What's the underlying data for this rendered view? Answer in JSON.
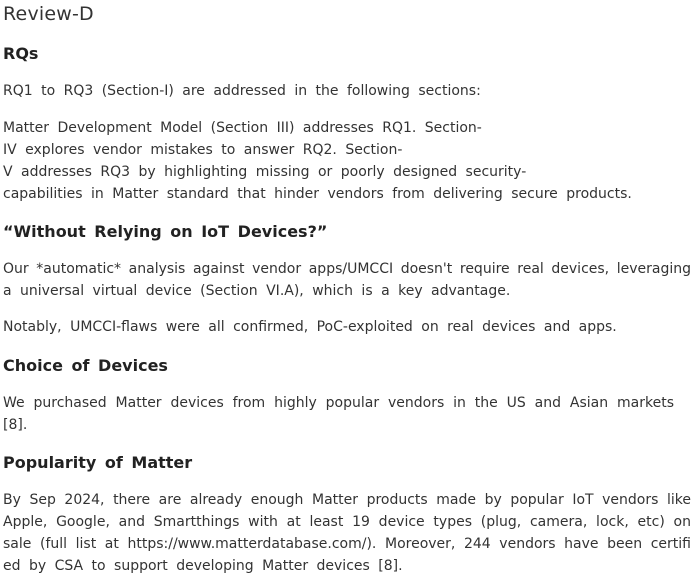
{
  "title": "Review-D",
  "sections": [
    {
      "heading": "RQs",
      "paragraphs": [
        [
          "RQ1 to RQ3 (Section-I) are addressed in the following sections:"
        ],
        [
          "Matter Development Model (Section III) addresses RQ1. Section-",
          "IV explores vendor mistakes to answer RQ2. Section-",
          "V addresses RQ3 by highlighting missing or poorly designed security-",
          "capabilities in Matter standard that hinder vendors from delivering secure products."
        ]
      ]
    },
    {
      "heading": "“Without Relying on IoT Devices?”",
      "paragraphs": [
        [
          "Our *automatic* analysis against vendor apps/UMCCI doesn't require real devices, leveraging",
          " a universal virtual device (Section VI.A), which is a key advantage."
        ],
        [
          "Notably, UMCCI-flaws were all confirmed, PoC-exploited on real devices and apps."
        ]
      ]
    },
    {
      "heading": "Choice of Devices",
      "paragraphs": [
        [
          "We purchased Matter devices from highly popular vendors in the US and Asian markets",
          "[8]."
        ]
      ]
    },
    {
      "heading": "Popularity of Matter",
      "paragraphs": [
        [
          "By Sep 2024, there are already enough Matter products made by popular IoT vendors like",
          " Apple, Google, and Smartthings with at least 19 device types (plug, camera, lock, etc) on",
          " sale (full list at https://www.matterdatabase.com/). Moreover, 244 vendors have been certifi",
          "ed by CSA to support developing Matter devices [8]."
        ]
      ]
    }
  ]
}
